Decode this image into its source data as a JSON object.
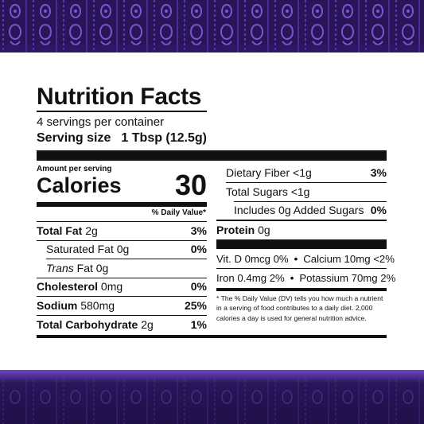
{
  "colors": {
    "band": "#2a1559",
    "band_accent": "#6e46c4",
    "rule": "#111111"
  },
  "label": {
    "title": "Nutrition Facts",
    "servings_per_container": "4 servings per container",
    "serving_size_label": "Serving size",
    "serving_size_value": "1 Tbsp (12.5g)",
    "amount_per_serving": "Amount per serving",
    "calories_label": "Calories",
    "calories_value": "30",
    "daily_value_header": "% Daily Value*"
  },
  "left_nutrients": [
    {
      "name": "Total Fat",
      "amount": "2g",
      "dv": "3%"
    },
    {
      "name": "Saturated Fat",
      "amount": "0g",
      "dv": "0%"
    },
    {
      "name": "Trans",
      "name_rest": "Fat",
      "amount": "0g",
      "dv": ""
    },
    {
      "name": "Cholesterol",
      "amount": "0mg",
      "dv": "0%"
    },
    {
      "name": "Sodium",
      "amount": "580mg",
      "dv": "25%"
    },
    {
      "name": "Total Carbohydrate",
      "amount": "2g",
      "dv": "1%"
    }
  ],
  "right_nutrients": [
    {
      "name": "Dietary Fiber",
      "amount": "<1g",
      "dv": "3%"
    },
    {
      "name": "Total Sugars",
      "amount": "<1g",
      "dv": ""
    },
    {
      "name": "Includes 0g Added Sugars",
      "amount": "",
      "dv": "0%"
    },
    {
      "name": "Protein",
      "amount": "0g",
      "dv": ""
    }
  ],
  "vitamins": {
    "row1_left": "Vit. D 0mcg 0%",
    "row1_sep": "•",
    "row1_right": "Calcium 10mg <2%",
    "row2_left": "Iron 0.4mg 2%",
    "row2_sep": "•",
    "row2_right": "Potassium 70mg 2%"
  },
  "footnote": "* The % Daily Value (DV) tells you how much a nutrient in a serving of food contributes to a daily diet. 2,000 calories a day is used for general nutrition advice."
}
